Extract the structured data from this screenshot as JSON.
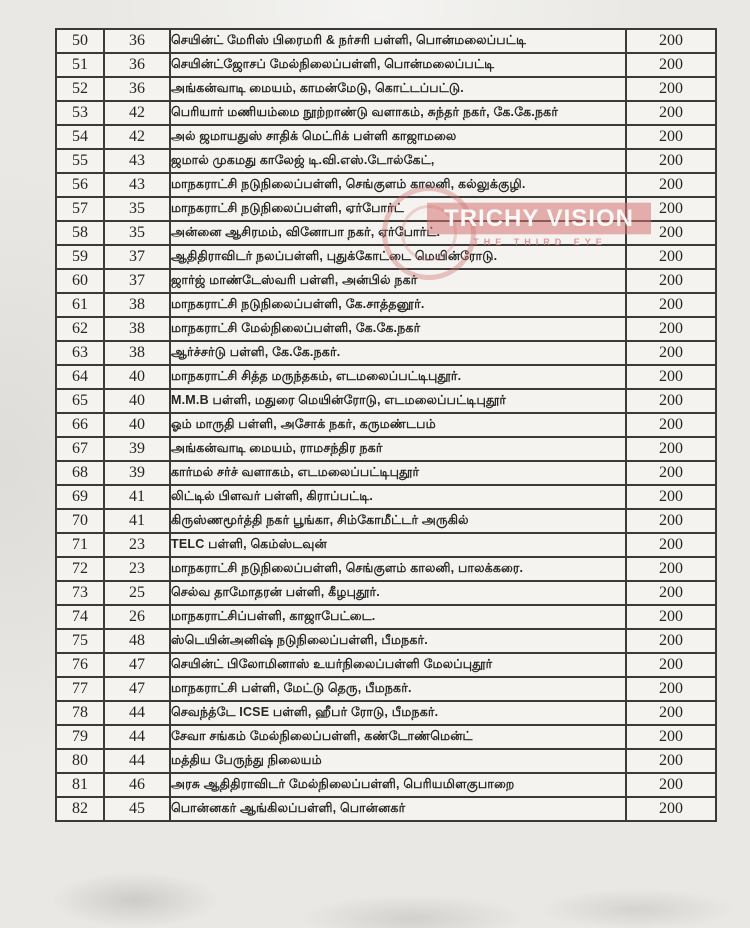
{
  "watermark": {
    "title": "TRICHY VISION",
    "subtitle": "THE THIRD EYE",
    "band_color": "#d37373",
    "title_color": "#ffffff",
    "subtitle_color": "#d68787"
  },
  "table": {
    "rows": [
      {
        "sno": "50",
        "ward": "36",
        "name": "செயின்ட் மேரிஸ் பிரைமரி & நர்சரி பள்ளி, பொன்மலைப்பட்டி",
        "count": "200"
      },
      {
        "sno": "51",
        "ward": "36",
        "name": "செயின்ட்ஜோசப் மேல்நிலைப்பள்ளி, பொன்மலைப்பட்டி",
        "count": "200"
      },
      {
        "sno": "52",
        "ward": "36",
        "name": "அங்கன்வாடி மையம், காமன்மேடு, கொட்டப்பட்டு.",
        "count": "200"
      },
      {
        "sno": "53",
        "ward": "42",
        "name": "பெரியார் மணியம்மை நூற்றாண்டு வளாகம், சுந்தர் நகர், கே.கே.நகர்",
        "count": "200"
      },
      {
        "sno": "54",
        "ward": "42",
        "name": "அல் ஜமாயதுஸ் சாதிக் மெட்ரிக் பள்ளி காஜாமலை",
        "count": "200"
      },
      {
        "sno": "55",
        "ward": "43",
        "name": "ஜமால் முகமது காலேஜ் டி.வி.எஸ்.டோல்கேட்,",
        "count": "200"
      },
      {
        "sno": "56",
        "ward": "43",
        "name": "மாநகராட்சி நடுநிலைப்பள்ளி, செங்குளம் காலனி, கல்லுக்குழி.",
        "count": "200"
      },
      {
        "sno": "57",
        "ward": "35",
        "name": "மாநகராட்சி நடுநிலைப்பள்ளி, ஏர்போர்ட்",
        "count": "200"
      },
      {
        "sno": "58",
        "ward": "35",
        "name": "அன்னை ஆசிரமம், வினோபா நகர், ஏர்போர்ட்.",
        "count": "200"
      },
      {
        "sno": "59",
        "ward": "37",
        "name": "ஆதிதிராவிடர் நலப்பள்ளி, புதுக்கோட்டை மெயின்ரோடு.",
        "count": "200"
      },
      {
        "sno": "60",
        "ward": "37",
        "name": "ஜார்ஜ் மாண்டேஸ்வரி பள்ளி, அன்பில் நகர்",
        "count": "200"
      },
      {
        "sno": "61",
        "ward": "38",
        "name": "மாநகராட்சி நடுநிலைப்பள்ளி, கே.சாத்தனூர்.",
        "count": "200"
      },
      {
        "sno": "62",
        "ward": "38",
        "name": "மாநகராட்சி மேல்நிலைப்பள்ளி, கே.கே.நகர்",
        "count": "200"
      },
      {
        "sno": "63",
        "ward": "38",
        "name": "ஆர்ச்சர்டு பள்ளி, கே.கே.நகர்.",
        "count": "200"
      },
      {
        "sno": "64",
        "ward": "40",
        "name": "மாநகராட்சி சித்த மருந்தகம், எடமலைப்பட்டிபுதூர்.",
        "count": "200"
      },
      {
        "sno": "65",
        "ward": "40",
        "name": "M.M.B பள்ளி, மதுரை மெயின்ரோடு, எடமலைப்பட்டிபுதூர்",
        "count": "200"
      },
      {
        "sno": "66",
        "ward": "40",
        "name": "ஓம் மாருதி பள்ளி, அசோக் நகர், கருமண்டபம்",
        "count": "200"
      },
      {
        "sno": "67",
        "ward": "39",
        "name": "அங்கன்வாடி மையம், ராமசந்திர நகர்",
        "count": "200"
      },
      {
        "sno": "68",
        "ward": "39",
        "name": "கார்மல் சர்ச் வளாகம், எடமலைப்பட்டிபுதூர்",
        "count": "200"
      },
      {
        "sno": "69",
        "ward": "41",
        "name": "லிட்டில் பிளவர் பள்ளி, கிராப்பட்டி.",
        "count": "200"
      },
      {
        "sno": "70",
        "ward": "41",
        "name": "கிருஸ்ணமூர்த்தி நகர் பூங்கா, சிம்கோமீட்டர் அருகில்",
        "count": "200"
      },
      {
        "sno": "71",
        "ward": "23",
        "name": "TELC பள்ளி, கெம்ஸ்டவுன்",
        "count": "200"
      },
      {
        "sno": "72",
        "ward": "23",
        "name": "மாநகராட்சி நடுநிலைப்பள்ளி, செங்குளம் காலனி, பாலக்கரை.",
        "count": "200"
      },
      {
        "sno": "73",
        "ward": "25",
        "name": "செல்வ தாமோதரன் பள்ளி, கீழபுதூர்.",
        "count": "200"
      },
      {
        "sno": "74",
        "ward": "26",
        "name": "மாநகராட்சிப்பள்ளி, காஜாபேட்டை.",
        "count": "200"
      },
      {
        "sno": "75",
        "ward": "48",
        "name": "ஸ்டெயின்அனிஷ் நடுநிலைப்பள்ளி, பீமநகர்.",
        "count": "200"
      },
      {
        "sno": "76",
        "ward": "47",
        "name": "செயின்ட் பிலோமினாஸ் உயர்நிலைப்பள்ளி மேலப்புதூர்",
        "count": "200"
      },
      {
        "sno": "77",
        "ward": "47",
        "name": "மாநகராட்சி பள்ளி, மேட்டு தெரு, பீமநகர்.",
        "count": "200"
      },
      {
        "sno": "78",
        "ward": "44",
        "name": "செவந்த்டே ICSE பள்ளி, ஹீபர் ரோடு, பீமநகர்.",
        "count": "200"
      },
      {
        "sno": "79",
        "ward": "44",
        "name": "சேவா சங்கம் மேல்நிலைப்பள்ளி, கண்டோண்மென்ட்",
        "count": "200"
      },
      {
        "sno": "80",
        "ward": "44",
        "name": "மத்திய பேருந்து நிலையம்",
        "count": "200"
      },
      {
        "sno": "81",
        "ward": "46",
        "name": "அரசு ஆதிதிராவிடர் மேல்நிலைப்பள்ளி, பெரியமிளகுபாறை",
        "count": "200"
      },
      {
        "sno": "82",
        "ward": "45",
        "name": "பொன்னகர் ஆங்கிலப்பள்ளி, பொன்னகர்",
        "count": "200"
      }
    ]
  }
}
